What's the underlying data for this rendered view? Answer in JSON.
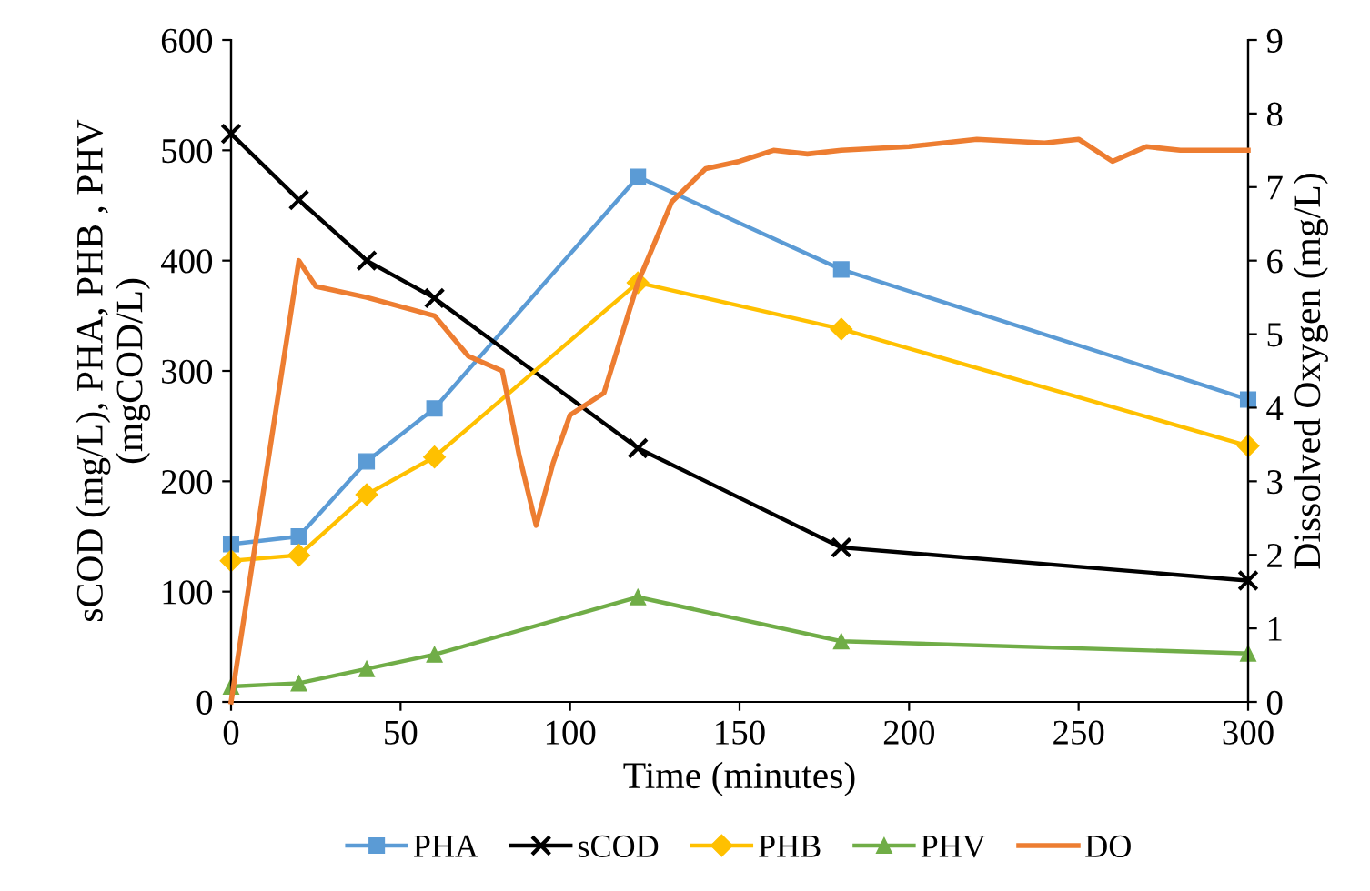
{
  "chart_data": {
    "type": "line",
    "xlabel": "Time (minutes)",
    "ylabel": "sCOD (mg/L), PHA, PHB , PHV\n(mgCOD/L)",
    "y2label": "Dissolved Oxygen (mg/L)",
    "x": [
      0,
      20,
      40,
      60,
      120,
      180,
      300
    ],
    "xlim": [
      0,
      300
    ],
    "xticks": [
      0,
      50,
      100,
      150,
      200,
      250,
      300
    ],
    "ylim": [
      0,
      600
    ],
    "yticks": [
      0,
      100,
      200,
      300,
      400,
      500,
      600
    ],
    "y2lim": [
      0,
      9
    ],
    "y2ticks": [
      0,
      1,
      2,
      3,
      4,
      5,
      6,
      7,
      8,
      9
    ],
    "grid": false,
    "legend": "bottom",
    "series": [
      {
        "name": "PHA",
        "color": "#5b9bd5",
        "marker": "square",
        "values": [
          143,
          150,
          218,
          266,
          476,
          392,
          274
        ]
      },
      {
        "name": "sCOD",
        "color": "#000000",
        "marker": "cross",
        "values": [
          515,
          455,
          400,
          366,
          230,
          140,
          110
        ]
      },
      {
        "name": "PHB",
        "color": "#ffc000",
        "marker": "diamond",
        "values": [
          128,
          133,
          188,
          222,
          380,
          338,
          232
        ]
      },
      {
        "name": "PHV",
        "color": "#70ad47",
        "marker": "triangle",
        "values": [
          14,
          17,
          30,
          43,
          95,
          55,
          44
        ]
      },
      {
        "name": "DO",
        "color": "#ed7d31",
        "marker": "none",
        "axis": "y2",
        "x": [
          0,
          20,
          25,
          40,
          60,
          70,
          80,
          85,
          90,
          95,
          100,
          110,
          120,
          130,
          140,
          150,
          160,
          170,
          180,
          200,
          220,
          240,
          250,
          260,
          270,
          280,
          300
        ],
        "values": [
          0.0,
          6.0,
          5.65,
          5.5,
          5.25,
          4.7,
          4.5,
          3.35,
          2.4,
          3.25,
          3.9,
          4.2,
          5.7,
          6.8,
          7.25,
          7.35,
          7.5,
          7.45,
          7.5,
          7.55,
          7.65,
          7.6,
          7.65,
          7.35,
          7.55,
          7.5,
          7.5
        ]
      }
    ]
  }
}
